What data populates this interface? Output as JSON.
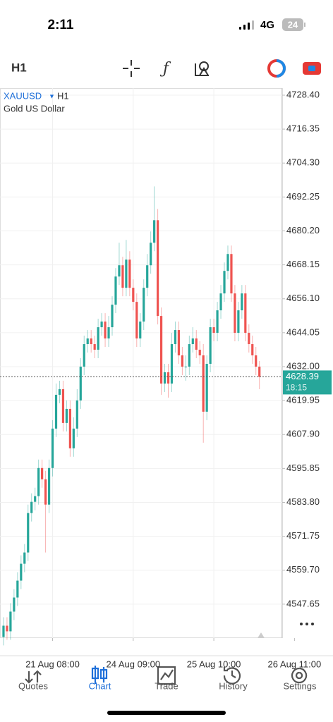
{
  "status_bar": {
    "time": "2:11",
    "network": "4G",
    "battery": "24"
  },
  "toolbar": {
    "timeframe": "H1"
  },
  "chart_data": {
    "type": "candlestick",
    "symbol": "XAUUSD",
    "timeframe": "H1",
    "subtitle": "Gold US Dollar",
    "up_color": "#26a69a",
    "down_color": "#ef5350",
    "grid": true,
    "open": [
      4536,
      4540,
      4538,
      4545,
      4550,
      4556,
      4562,
      4566,
      4580,
      4584,
      4586,
      4596,
      4592,
      4583,
      4596,
      4610,
      4622,
      4624,
      4612,
      4617,
      4603,
      4610,
      4620,
      4632,
      4640,
      4642,
      4640,
      4638,
      4646,
      4648,
      4642,
      4646,
      4654,
      4664,
      4668,
      4660,
      4670,
      4660,
      4655,
      4642,
      4648,
      4660,
      4668,
      4676,
      4684,
      4650,
      4626,
      4630,
      4626,
      4640,
      4645,
      4636,
      4632,
      4632,
      4640,
      4642,
      4638,
      4636,
      4616,
      4633,
      4646,
      4644,
      4652,
      4658,
      4666,
      4672,
      4658,
      4644,
      4652,
      4658,
      4644,
      4640,
      4636,
      4632
    ],
    "high": [
      4543,
      4543,
      4548,
      4553,
      4559,
      4565,
      4569,
      4583,
      4587,
      4589,
      4599,
      4599,
      4595,
      4599,
      4613,
      4626,
      4627,
      4627,
      4620,
      4620,
      4614,
      4624,
      4635,
      4643,
      4645,
      4645,
      4643,
      4649,
      4651,
      4651,
      4650,
      4657,
      4667,
      4676,
      4671,
      4677,
      4673,
      4663,
      4658,
      4651,
      4663,
      4672,
      4680,
      4696,
      4688,
      4653,
      4633,
      4633,
      4644,
      4648,
      4648,
      4639,
      4636,
      4643,
      4646,
      4645,
      4641,
      4640,
      4636,
      4649,
      4649,
      4655,
      4661,
      4669,
      4675,
      4675,
      4661,
      4655,
      4661,
      4661,
      4647,
      4643,
      4639,
      4634
    ],
    "low": [
      4533,
      4535,
      4535,
      4542,
      4547,
      4553,
      4559,
      4563,
      4577,
      4581,
      4583,
      4589,
      4566,
      4580,
      4593,
      4607,
      4619,
      4609,
      4609,
      4600,
      4600,
      4607,
      4617,
      4629,
      4637,
      4637,
      4635,
      4635,
      4643,
      4639,
      4639,
      4643,
      4651,
      4661,
      4657,
      4657,
      4657,
      4652,
      4639,
      4639,
      4645,
      4657,
      4665,
      4673,
      4647,
      4622,
      4623,
      4621,
      4623,
      4637,
      4633,
      4629,
      4627,
      4629,
      4637,
      4635,
      4633,
      4605,
      4613,
      4630,
      4641,
      4641,
      4649,
      4655,
      4663,
      4655,
      4641,
      4641,
      4649,
      4641,
      4637,
      4633,
      4629,
      4624
    ],
    "close": [
      4540,
      4538,
      4545,
      4550,
      4556,
      4562,
      4566,
      4580,
      4584,
      4586,
      4596,
      4592,
      4583,
      4596,
      4610,
      4622,
      4624,
      4612,
      4617,
      4603,
      4610,
      4620,
      4632,
      4640,
      4642,
      4640,
      4638,
      4646,
      4648,
      4642,
      4646,
      4654,
      4664,
      4668,
      4660,
      4670,
      4660,
      4655,
      4642,
      4648,
      4660,
      4668,
      4676,
      4684,
      4650,
      4626,
      4630,
      4626,
      4640,
      4645,
      4636,
      4632,
      4632,
      4640,
      4642,
      4638,
      4636,
      4616,
      4633,
      4646,
      4644,
      4652,
      4658,
      4666,
      4672,
      4658,
      4644,
      4652,
      4658,
      4644,
      4640,
      4636,
      4632,
      4628.39
    ],
    "current_price": 4628.39,
    "countdown": "18:15",
    "ylim": [
      4535.6,
      4730.9
    ],
    "yticks": [
      {
        "value": 4728.4,
        "label": "4728.40"
      },
      {
        "value": 4716.35,
        "label": "4716.35"
      },
      {
        "value": 4704.3,
        "label": "4704.30"
      },
      {
        "value": 4692.25,
        "label": "4692.25"
      },
      {
        "value": 4680.2,
        "label": "4680.20"
      },
      {
        "value": 4668.15,
        "label": "4668.15"
      },
      {
        "value": 4656.1,
        "label": "4656.10"
      },
      {
        "value": 4644.05,
        "label": "4644.05"
      },
      {
        "value": 4632.0,
        "label": "4632.00"
      },
      {
        "value": 4619.95,
        "label": "4619.95"
      },
      {
        "value": 4607.9,
        "label": "4607.90"
      },
      {
        "value": 4595.85,
        "label": "4595.85"
      },
      {
        "value": 4583.8,
        "label": "4583.80"
      },
      {
        "value": 4571.75,
        "label": "4571.75"
      },
      {
        "value": 4559.7,
        "label": "4559.70"
      },
      {
        "value": 4547.65,
        "label": "4547.65"
      }
    ],
    "xlim": [
      -1,
      79.5
    ],
    "xticks": [
      {
        "value": 14,
        "label": "21 Aug 08:00"
      },
      {
        "value": 37,
        "label": "24 Aug 09:00"
      },
      {
        "value": 60,
        "label": "25 Aug 10:00"
      },
      {
        "value": 83,
        "label": "26 Aug 11:00"
      }
    ]
  },
  "tabs": [
    {
      "label": "Quotes"
    },
    {
      "label": "Chart"
    },
    {
      "label": "Trade"
    },
    {
      "label": "History"
    },
    {
      "label": "Settings"
    }
  ],
  "active_tab": 1
}
